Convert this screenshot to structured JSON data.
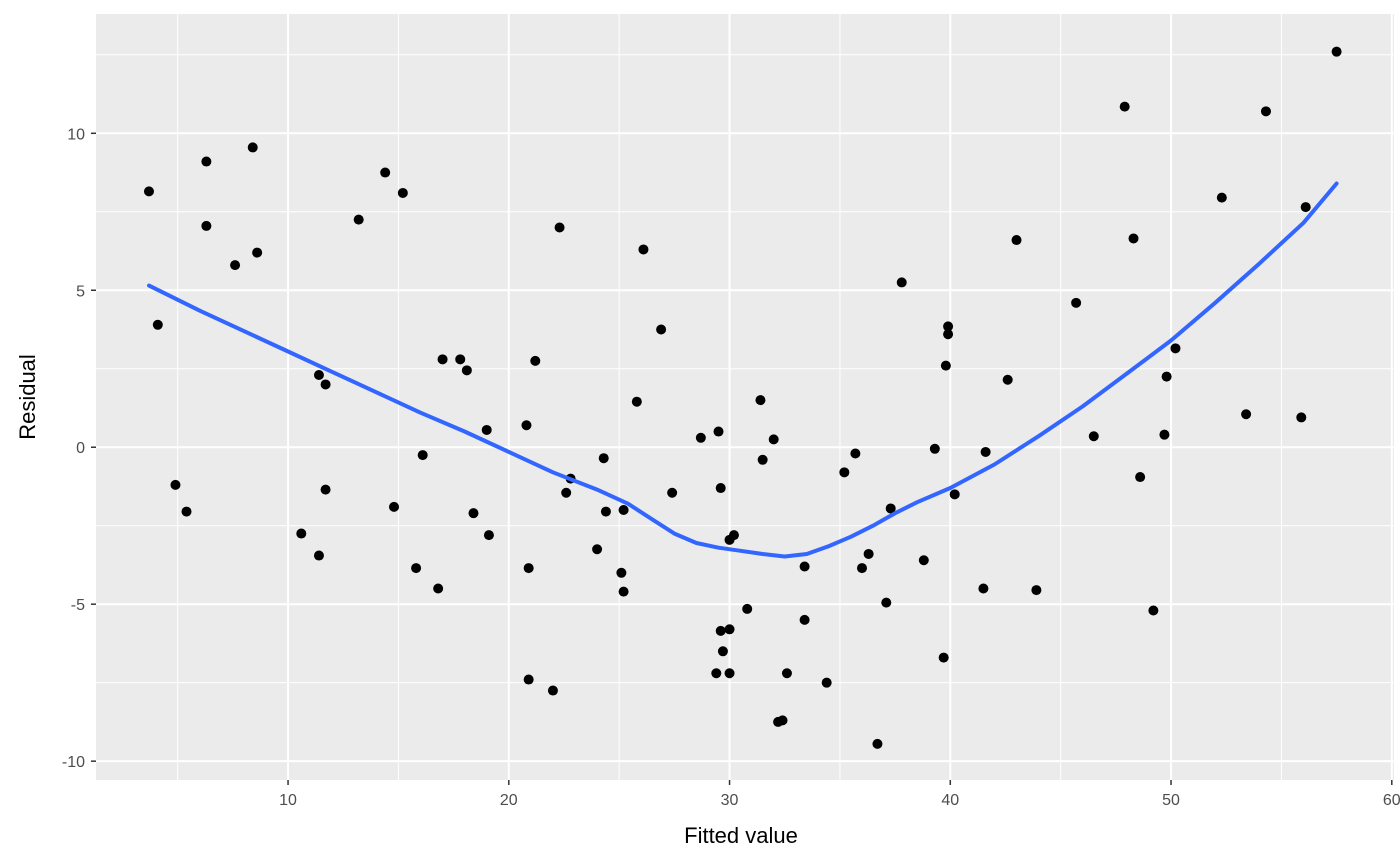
{
  "chart_data": {
    "type": "scatter",
    "title": "",
    "xlabel": "Fitted value",
    "ylabel": "Residual",
    "xlim": [
      1.3,
      60.1
    ],
    "ylim": [
      -10.6,
      13.8
    ],
    "x_major_ticks": [
      10,
      20,
      30,
      40,
      50,
      60
    ],
    "x_minor_ticks": [
      5,
      15,
      25,
      35,
      45,
      55
    ],
    "y_major_ticks": [
      -10,
      -5,
      0,
      5,
      10
    ],
    "y_minor_ticks": [
      -7.5,
      -2.5,
      2.5,
      7.5,
      12.5
    ],
    "x_tick_labels": [
      "10",
      "20",
      "30",
      "40",
      "50",
      "60"
    ],
    "y_tick_labels": [
      "-10",
      "-5",
      "0",
      "5",
      "10"
    ],
    "grid": true,
    "legend": "none",
    "colors": {
      "panel": "#ebebeb",
      "grid": "#ffffff",
      "points": "#000000",
      "smooth": "#3366ff"
    },
    "points": [
      [
        3.7,
        8.15
      ],
      [
        4.1,
        3.9
      ],
      [
        4.9,
        -1.2
      ],
      [
        5.4,
        -2.05
      ],
      [
        6.3,
        9.1
      ],
      [
        6.3,
        7.05
      ],
      [
        7.6,
        5.8
      ],
      [
        8.4,
        9.55
      ],
      [
        8.6,
        6.2
      ],
      [
        10.6,
        -2.75
      ],
      [
        11.4,
        2.3
      ],
      [
        11.4,
        -3.45
      ],
      [
        11.7,
        2.0
      ],
      [
        11.7,
        -1.35
      ],
      [
        13.2,
        7.25
      ],
      [
        14.4,
        8.75
      ],
      [
        14.8,
        -1.9
      ],
      [
        15.2,
        8.1
      ],
      [
        15.8,
        -3.85
      ],
      [
        16.1,
        -0.25
      ],
      [
        16.8,
        -4.5
      ],
      [
        17.0,
        2.8
      ],
      [
        17.8,
        2.8
      ],
      [
        18.1,
        2.45
      ],
      [
        18.4,
        -2.1
      ],
      [
        19.0,
        0.55
      ],
      [
        19.1,
        -2.8
      ],
      [
        20.8,
        0.7
      ],
      [
        20.9,
        -3.85
      ],
      [
        20.9,
        -7.4
      ],
      [
        21.2,
        2.75
      ],
      [
        22.0,
        -7.75
      ],
      [
        22.3,
        7.0
      ],
      [
        22.6,
        -1.45
      ],
      [
        22.8,
        -1.0
      ],
      [
        24.0,
        -3.25
      ],
      [
        24.3,
        -0.35
      ],
      [
        24.4,
        -2.05
      ],
      [
        25.1,
        -4.0
      ],
      [
        25.2,
        -2.0
      ],
      [
        25.2,
        -4.6
      ],
      [
        25.8,
        1.45
      ],
      [
        26.1,
        6.3
      ],
      [
        26.9,
        3.75
      ],
      [
        27.4,
        -1.45
      ],
      [
        28.7,
        0.3
      ],
      [
        29.4,
        -7.2
      ],
      [
        29.5,
        0.5
      ],
      [
        29.6,
        -1.3
      ],
      [
        29.6,
        -5.85
      ],
      [
        29.7,
        -6.5
      ],
      [
        30.0,
        -2.95
      ],
      [
        30.0,
        -5.8
      ],
      [
        30.0,
        -7.2
      ],
      [
        30.2,
        -2.8
      ],
      [
        30.8,
        -5.15
      ],
      [
        31.4,
        1.5
      ],
      [
        31.5,
        -0.4
      ],
      [
        32.0,
        0.25
      ],
      [
        32.2,
        -8.75
      ],
      [
        32.4,
        -8.7
      ],
      [
        32.6,
        -7.2
      ],
      [
        33.4,
        -3.8
      ],
      [
        33.4,
        -5.5
      ],
      [
        34.4,
        -7.5
      ],
      [
        35.2,
        -0.8
      ],
      [
        35.7,
        -0.2
      ],
      [
        36.0,
        -3.85
      ],
      [
        36.3,
        -3.4
      ],
      [
        36.7,
        -9.45
      ],
      [
        37.1,
        -4.95
      ],
      [
        37.3,
        -1.95
      ],
      [
        37.8,
        5.25
      ],
      [
        38.8,
        -3.6
      ],
      [
        39.3,
        -0.05
      ],
      [
        39.7,
        -6.7
      ],
      [
        39.8,
        2.6
      ],
      [
        39.9,
        3.85
      ],
      [
        39.9,
        3.6
      ],
      [
        40.2,
        -1.5
      ],
      [
        41.5,
        -4.5
      ],
      [
        41.6,
        -0.15
      ],
      [
        42.6,
        2.15
      ],
      [
        43.0,
        6.6
      ],
      [
        43.9,
        -4.55
      ],
      [
        45.7,
        4.6
      ],
      [
        46.5,
        0.35
      ],
      [
        47.9,
        10.85
      ],
      [
        48.3,
        6.65
      ],
      [
        48.6,
        -0.95
      ],
      [
        49.2,
        -5.2
      ],
      [
        49.7,
        0.4
      ],
      [
        49.8,
        2.25
      ],
      [
        50.2,
        3.15
      ],
      [
        52.3,
        7.95
      ],
      [
        53.4,
        1.05
      ],
      [
        54.3,
        10.7
      ],
      [
        55.9,
        0.95
      ],
      [
        56.1,
        7.65
      ],
      [
        57.5,
        12.6
      ]
    ],
    "smooth_line": [
      [
        3.7,
        5.15
      ],
      [
        6.0,
        4.35
      ],
      [
        8.0,
        3.7
      ],
      [
        10.0,
        3.05
      ],
      [
        12.0,
        2.4
      ],
      [
        14.0,
        1.75
      ],
      [
        16.0,
        1.1
      ],
      [
        18.0,
        0.5
      ],
      [
        20.0,
        -0.15
      ],
      [
        22.0,
        -0.8
      ],
      [
        24.0,
        -1.35
      ],
      [
        25.4,
        -1.8
      ],
      [
        26.5,
        -2.3
      ],
      [
        27.5,
        -2.75
      ],
      [
        28.5,
        -3.05
      ],
      [
        29.5,
        -3.2
      ],
      [
        30.5,
        -3.3
      ],
      [
        31.5,
        -3.4
      ],
      [
        32.5,
        -3.48
      ],
      [
        33.5,
        -3.4
      ],
      [
        34.5,
        -3.15
      ],
      [
        35.5,
        -2.85
      ],
      [
        36.5,
        -2.5
      ],
      [
        37.5,
        -2.1
      ],
      [
        38.5,
        -1.75
      ],
      [
        40.0,
        -1.3
      ],
      [
        42.0,
        -0.55
      ],
      [
        44.0,
        0.35
      ],
      [
        46.0,
        1.3
      ],
      [
        48.0,
        2.35
      ],
      [
        50.0,
        3.4
      ],
      [
        52.0,
        4.6
      ],
      [
        54.0,
        5.85
      ],
      [
        56.0,
        7.15
      ],
      [
        57.5,
        8.4
      ]
    ]
  }
}
